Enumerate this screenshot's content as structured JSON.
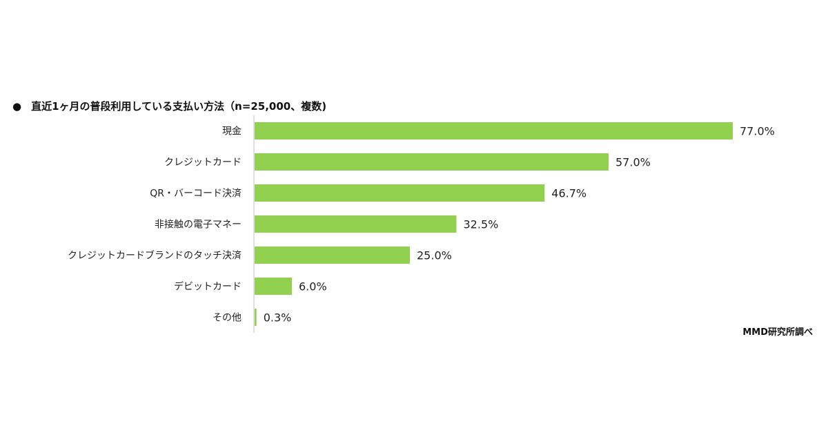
{
  "title_bullet": "●",
  "title": "直近1ヶ月の普段利用している支払い方法（n=25,000、複数)",
  "source": "MMD研究所調べ",
  "colors": {
    "bar": "#92d050",
    "axis": "#bfbfbf",
    "text": "#222222"
  },
  "chart_data": {
    "type": "bar",
    "orientation": "horizontal",
    "title": "直近1ヶ月の普段利用している支払い方法（n=25,000、複数)",
    "categories": [
      "現金",
      "クレジットカード",
      "QR・バーコード決済",
      "非接触の電子マネー",
      "クレジットカードブランドのタッチ決済",
      "デビットカード",
      "その他"
    ],
    "values": [
      77.0,
      57.0,
      46.7,
      32.5,
      25.0,
      6.0,
      0.3
    ],
    "value_labels": [
      "77.0%",
      "57.0%",
      "46.7%",
      "32.5%",
      "25.0%",
      "6.0%",
      "0.3%"
    ],
    "unit": "%",
    "xlim": [
      0,
      100
    ],
    "grid": false,
    "legend": "none"
  }
}
